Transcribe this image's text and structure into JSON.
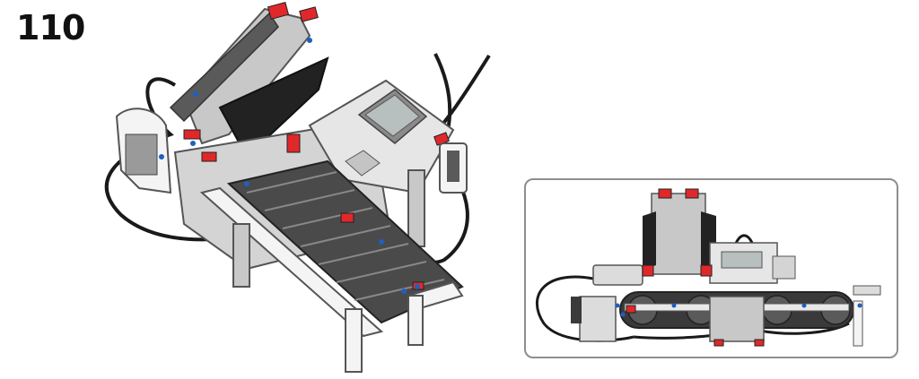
{
  "step": {
    "number": "110"
  },
  "colors": {
    "lego_light_gray": "#c8c8c8",
    "lego_dark_gray": "#5a5a5a",
    "lego_black": "#222222",
    "lego_red": "#e0282a",
    "lego_blue": "#1f5fbf",
    "lego_white": "#f4f4f4",
    "brick_screen": "#b8bfbf",
    "inset_border": "#8e8e8e"
  },
  "illustrations": {
    "main": "assembled-robot-isometric-view",
    "inset": "robot-side-view-detail"
  }
}
